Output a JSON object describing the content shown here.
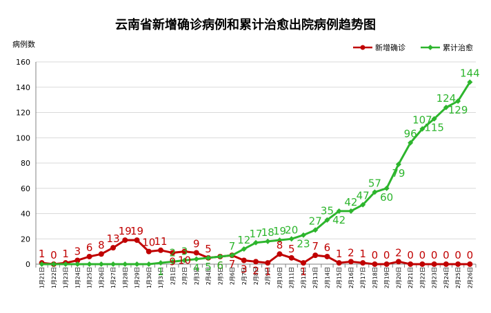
{
  "chart_data": {
    "type": "line",
    "title": "云南省新增确诊病例和累计治愈出院病例趋势图",
    "ylabel": "病例数",
    "ylim": [
      0,
      160
    ],
    "yticks": [
      0,
      20,
      40,
      60,
      80,
      100,
      120,
      140,
      160
    ],
    "grid": true,
    "legend_position": "top-right",
    "categories": [
      "1月21日",
      "1月22日",
      "1月23日",
      "1月24日",
      "1月25日",
      "1月26日",
      "1月27日",
      "1月28日",
      "1月29日",
      "1月30日",
      "1月31日",
      "2月1日",
      "2月2日",
      "2月3日",
      "2月4日",
      "2月5日",
      "2月6日",
      "2月7日",
      "2月8日",
      "2月9日",
      "2月10日",
      "2月11日",
      "2月12日",
      "2月13日",
      "2月14日",
      "2月15日",
      "2月16日",
      "2月17日",
      "2月18日",
      "2月19日",
      "2月20日",
      "2月21日",
      "2月22日",
      "2月23日",
      "2月24日",
      "2月25日",
      "2月26日"
    ],
    "series": [
      {
        "name": "新增确诊",
        "color": "#c00000",
        "marker": "circle",
        "values": [
          1,
          0,
          1,
          3,
          6,
          8,
          13,
          19,
          19,
          10,
          11,
          9,
          10,
          9,
          5,
          6,
          7,
          3,
          2,
          1,
          8,
          5,
          1,
          7,
          6,
          1,
          2,
          1,
          0,
          0,
          2,
          0,
          0,
          0,
          0,
          0,
          0
        ]
      },
      {
        "name": "累计治愈",
        "color": "#2db52d",
        "marker": "diamond",
        "values": [
          0,
          0,
          0,
          0,
          0,
          0,
          0,
          0,
          0,
          0,
          1,
          2,
          3,
          4,
          5,
          6,
          7,
          12,
          17,
          18,
          19,
          20,
          23,
          27,
          35,
          42,
          42,
          47,
          57,
          60,
          79,
          96,
          107,
          115,
          124,
          129,
          144
        ]
      }
    ]
  }
}
